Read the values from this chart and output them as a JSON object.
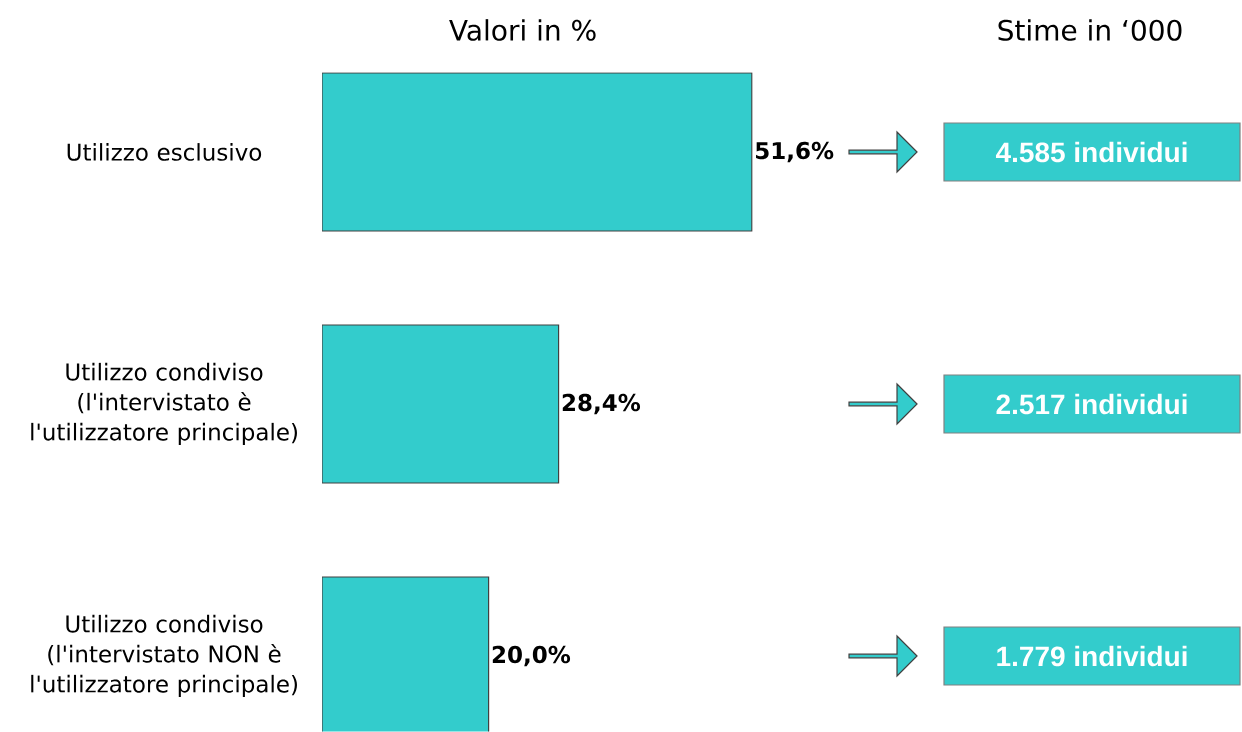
{
  "chart_data": {
    "type": "bar",
    "orientation": "horizontal",
    "title": "Valori in %",
    "categories": [
      "Utilizzo esclusivo",
      "Utilizzo condiviso (l'intervistato è l'utilizzatore principale)",
      "Utilizzo condiviso (l'intervistato NON è l'utilizzatore principale)"
    ],
    "values": [
      51.6,
      28.4,
      20.0
    ],
    "color": "#33cccc",
    "value_labels": [
      "51,6%",
      "28,4%",
      "20,0%"
    ],
    "annotations": [
      "Stime in ‘000",
      "4.585 individui",
      "2.517 individui",
      "1.779 individui"
    ]
  }
}
